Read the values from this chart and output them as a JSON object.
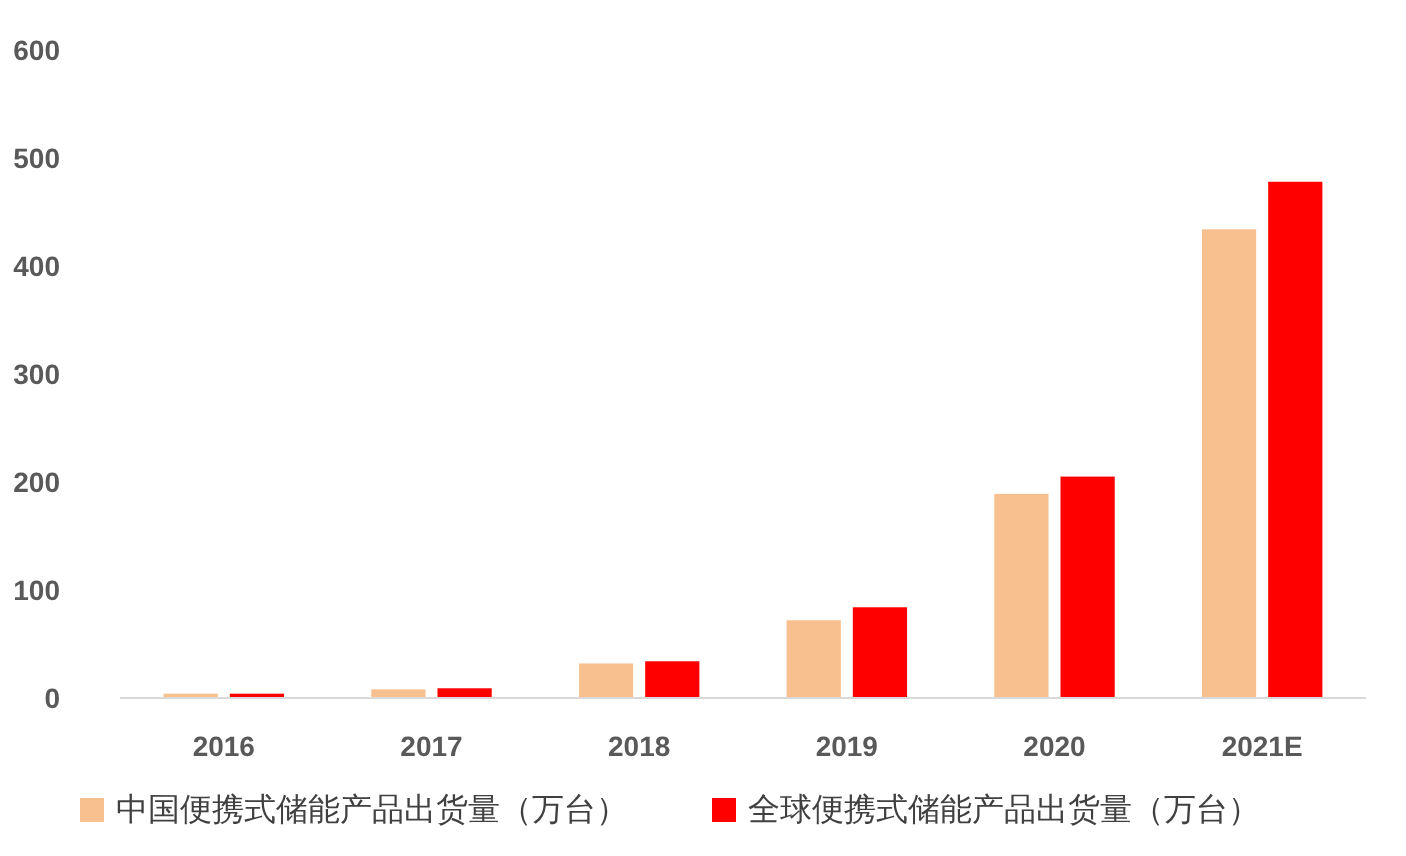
{
  "chart_data": {
    "type": "bar",
    "categories": [
      "2016",
      "2017",
      "2018",
      "2019",
      "2020",
      "2021E"
    ],
    "series": [
      {
        "name": "中国便携式储能产品出货量（万台）",
        "color": "#f8c08f",
        "values": [
          4,
          8,
          32,
          72,
          189,
          434
        ]
      },
      {
        "name": "全球便携式储能产品出货量（万台）",
        "color": "#ff0000",
        "values": [
          4,
          9,
          34,
          84,
          205,
          478
        ]
      }
    ],
    "ylim": [
      0,
      600
    ],
    "yticks": [
      0,
      100,
      200,
      300,
      400,
      500,
      600
    ],
    "legend": "bottom"
  }
}
